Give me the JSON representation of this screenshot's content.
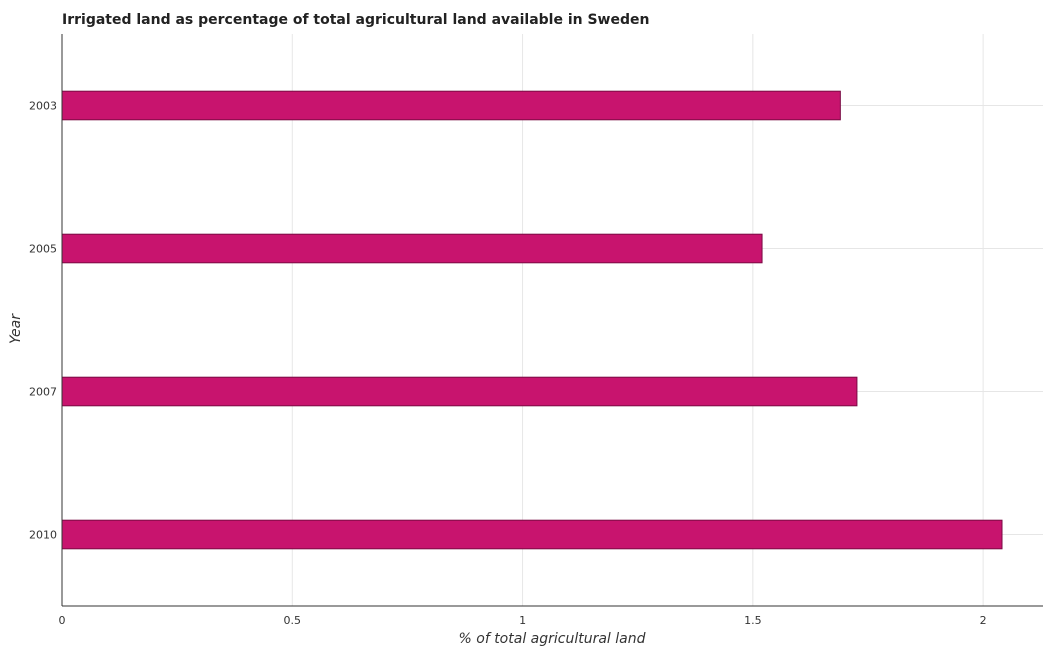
{
  "chart_data": {
    "type": "bar",
    "orientation": "horizontal",
    "title": "Irrigated land as percentage of total agricultural land available in Sweden",
    "xlabel": "% of total agricultural land",
    "ylabel": "Year",
    "categories": [
      "2003",
      "2005",
      "2007",
      "2010"
    ],
    "values": [
      1.69,
      1.52,
      1.726,
      2.041
    ],
    "xlim": [
      0,
      2.13
    ],
    "xticks": [
      0,
      0.5,
      1,
      1.5,
      2
    ],
    "xtick_labels": [
      "0",
      "0.5",
      "1",
      "1.5",
      "2"
    ],
    "grid": true,
    "bar_color": "#c8146e",
    "bar_edge_color": "#7a0a44"
  }
}
